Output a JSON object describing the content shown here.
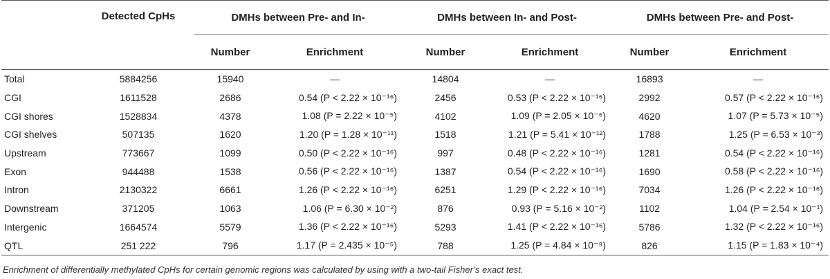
{
  "header": {
    "detected_label": "Detected CpHs",
    "groups": [
      "DMHs between Pre- and In-",
      "DMHs between In- and Post-",
      "DMHs between Pre- and Post-"
    ],
    "number_label": "Number",
    "enrichment_label": "Enrichment"
  },
  "rows": [
    {
      "label": "Total",
      "detected": "5884256",
      "n1": "15940",
      "e1": "—",
      "n2": "14804",
      "e2": "—",
      "n3": "16893",
      "e3": "—"
    },
    {
      "label": "CGI",
      "detected": "1611528",
      "n1": "2686",
      "e1": "0.54 (P < 2.22 × 10⁻¹⁶)",
      "n2": "2456",
      "e2": "0.53 (P < 2.22 × 10⁻¹⁶)",
      "n3": "2992",
      "e3": "0.57 (P < 2.22 × 10⁻¹⁶)"
    },
    {
      "label": "CGI shores",
      "detected": "1528834",
      "n1": "4378",
      "e1": "1.08 (P = 2.22 × 10⁻⁵)",
      "n2": "4102",
      "e2": "1.09 (P = 2.05 × 10⁻⁶)",
      "n3": "4620",
      "e3": "1.07 (P = 5.73 × 10⁻⁵)"
    },
    {
      "label": "CGI shelves",
      "detected": "507135",
      "n1": "1620",
      "e1": "1.20 (P = 1.28 × 10⁻¹¹)",
      "n2": "1518",
      "e2": "1.21 (P = 5.41 × 10⁻¹²)",
      "n3": "1788",
      "e3": "1.25 (P = 6.53 × 10⁻³)"
    },
    {
      "label": "Upstream",
      "detected": "773667",
      "n1": "1099",
      "e1": "0.50 (P < 2.22 × 10⁻¹⁶)",
      "n2": "997",
      "e2": "0.48 (P < 2.22 × 10⁻¹⁶)",
      "n3": "1281",
      "e3": "0.54 (P < 2.22 × 10⁻¹⁶)"
    },
    {
      "label": "Exon",
      "detected": "944488",
      "n1": "1538",
      "e1": "0.56 (P < 2.22 × 10⁻¹⁶)",
      "n2": "1387",
      "e2": "0.54 (P < 2.22 × 10⁻¹⁶)",
      "n3": "1690",
      "e3": "0.58 (P < 2.22 × 10⁻¹⁶)"
    },
    {
      "label": "Intron",
      "detected": "2130322",
      "n1": "6661",
      "e1": "1.26 (P < 2.22 × 10⁻¹⁶)",
      "n2": "6251",
      "e2": "1.29 (P < 2.22 × 10⁻¹⁶)",
      "n3": "7034",
      "e3": "1.26 (P < 2.22 × 10⁻¹⁶)"
    },
    {
      "label": "Downstream",
      "detected": "371205",
      "n1": "1063",
      "e1": "1.06 (P = 6.30 × 10⁻²)",
      "n2": "876",
      "e2": "0.93 (P = 5.16 × 10⁻²)",
      "n3": "1102",
      "e3": "1.04 (P = 2.54 × 10⁻¹)"
    },
    {
      "label": "Intergenic",
      "detected": "1664574",
      "n1": "5579",
      "e1": "1.36 (P < 2.22 × 10⁻¹⁶)",
      "n2": "5293",
      "e2": "1.41 (P < 2.22 × 10⁻¹⁶)",
      "n3": "5786",
      "e3": "1.32 (P < 2.22 × 10⁻¹⁶)"
    },
    {
      "label": "QTL",
      "detected": "251 222",
      "n1": "796",
      "e1": "1.17 (P = 2.435 × 10⁻⁵)",
      "n2": "788",
      "e2": "1.25 (P = 4.84 × 10⁻⁹)",
      "n3": "826",
      "e3": "1.15 (P = 1.83 × 10⁻⁴)"
    }
  ],
  "footnote": "Enrichment of differentially methylated CpHs for certain genomic regions was calculated by using with a two-tail Fisher’s exact test."
}
